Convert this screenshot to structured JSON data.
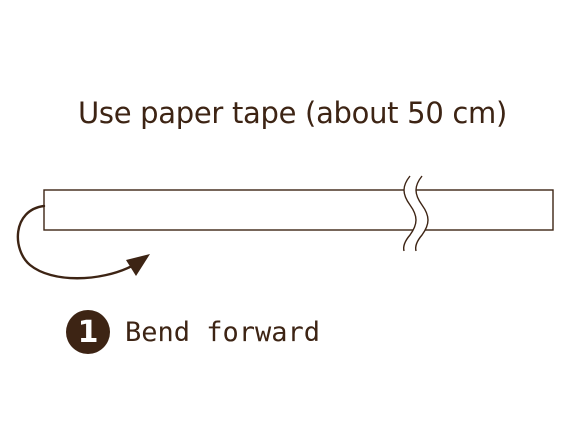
{
  "title": "Use paper tape (about 50 cm)",
  "step": {
    "number": "1",
    "label": "Bend forward"
  },
  "colors": {
    "ink": "#3d2414",
    "background": "#ffffff"
  },
  "icons": [
    "paper-tape-strip",
    "tear-break-mark",
    "curved-arrow-icon"
  ]
}
